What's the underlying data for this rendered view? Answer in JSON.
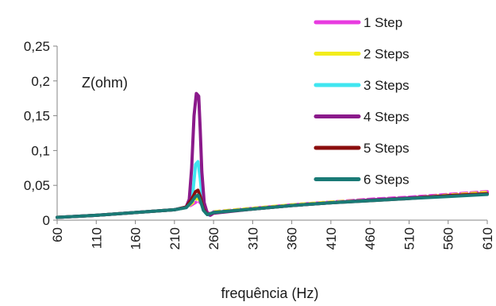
{
  "chart_data": {
    "type": "line",
    "title": "",
    "xlabel": "frequência (Hz)",
    "ylabel": "Z(ohm)",
    "xlim": [
      60,
      610
    ],
    "ylim": [
      0,
      0.25
    ],
    "x_tick_labels": [
      "60",
      "110",
      "160",
      "210",
      "260",
      "310",
      "360",
      "410",
      "460",
      "510",
      "560",
      "610"
    ],
    "y_tick_labels": [
      "0",
      "0,05",
      "0,1",
      "0,15",
      "0,2",
      "0,25"
    ],
    "y_tick_values": [
      0,
      0.05,
      0.1,
      0.15,
      0.2,
      0.25
    ],
    "x_tick_values": [
      60,
      110,
      160,
      210,
      260,
      310,
      360,
      410,
      460,
      510,
      560,
      610
    ],
    "grid": false,
    "legend_position": "right",
    "series": [
      {
        "name": "1 Step",
        "color": "#e83be0",
        "points": [
          [
            60,
            0.004
          ],
          [
            110,
            0.007
          ],
          [
            160,
            0.011
          ],
          [
            210,
            0.015
          ],
          [
            225,
            0.018
          ],
          [
            232,
            0.022
          ],
          [
            238,
            0.026
          ],
          [
            241,
            0.027
          ],
          [
            244,
            0.024
          ],
          [
            248,
            0.015
          ],
          [
            255,
            0.009
          ],
          [
            260,
            0.012
          ],
          [
            310,
            0.017
          ],
          [
            360,
            0.022
          ],
          [
            410,
            0.026
          ],
          [
            460,
            0.03
          ],
          [
            510,
            0.033
          ],
          [
            560,
            0.037
          ],
          [
            610,
            0.041
          ]
        ]
      },
      {
        "name": "2 Steps",
        "color": "#f2ec1c",
        "points": [
          [
            60,
            0.004
          ],
          [
            110,
            0.007
          ],
          [
            160,
            0.011
          ],
          [
            210,
            0.015
          ],
          [
            225,
            0.018
          ],
          [
            232,
            0.024
          ],
          [
            238,
            0.03
          ],
          [
            241,
            0.031
          ],
          [
            244,
            0.026
          ],
          [
            248,
            0.014
          ],
          [
            255,
            0.008
          ],
          [
            260,
            0.012
          ],
          [
            310,
            0.017
          ],
          [
            360,
            0.022
          ],
          [
            410,
            0.026
          ],
          [
            460,
            0.029
          ],
          [
            510,
            0.032
          ],
          [
            560,
            0.036
          ],
          [
            610,
            0.04
          ]
        ]
      },
      {
        "name": "3 Steps",
        "color": "#3fe6f0",
        "points": [
          [
            60,
            0.004
          ],
          [
            110,
            0.007
          ],
          [
            160,
            0.011
          ],
          [
            210,
            0.015
          ],
          [
            225,
            0.018
          ],
          [
            230,
            0.024
          ],
          [
            234,
            0.045
          ],
          [
            237,
            0.08
          ],
          [
            240,
            0.084
          ],
          [
            243,
            0.06
          ],
          [
            246,
            0.025
          ],
          [
            250,
            0.01
          ],
          [
            255,
            0.007
          ],
          [
            260,
            0.011
          ],
          [
            310,
            0.016
          ],
          [
            360,
            0.021
          ],
          [
            410,
            0.025
          ],
          [
            460,
            0.029
          ],
          [
            510,
            0.032
          ],
          [
            560,
            0.035
          ],
          [
            610,
            0.038
          ]
        ]
      },
      {
        "name": "4 Steps",
        "color": "#8b1a8b",
        "points": [
          [
            60,
            0.004
          ],
          [
            110,
            0.007
          ],
          [
            160,
            0.011
          ],
          [
            210,
            0.015
          ],
          [
            225,
            0.019
          ],
          [
            229,
            0.03
          ],
          [
            232,
            0.075
          ],
          [
            235,
            0.15
          ],
          [
            238,
            0.182
          ],
          [
            241,
            0.178
          ],
          [
            243,
            0.13
          ],
          [
            245,
            0.07
          ],
          [
            248,
            0.025
          ],
          [
            252,
            0.01
          ],
          [
            256,
            0.007
          ],
          [
            260,
            0.01
          ],
          [
            310,
            0.016
          ],
          [
            360,
            0.021
          ],
          [
            410,
            0.025
          ],
          [
            460,
            0.029
          ],
          [
            510,
            0.032
          ],
          [
            560,
            0.035
          ],
          [
            610,
            0.038
          ]
        ]
      },
      {
        "name": "5 Steps",
        "color": "#8b0d0d",
        "points": [
          [
            60,
            0.004
          ],
          [
            110,
            0.007
          ],
          [
            160,
            0.011
          ],
          [
            210,
            0.015
          ],
          [
            225,
            0.019
          ],
          [
            232,
            0.03
          ],
          [
            237,
            0.041
          ],
          [
            240,
            0.043
          ],
          [
            243,
            0.034
          ],
          [
            247,
            0.016
          ],
          [
            252,
            0.008
          ],
          [
            260,
            0.011
          ],
          [
            310,
            0.016
          ],
          [
            360,
            0.021
          ],
          [
            410,
            0.025
          ],
          [
            460,
            0.028
          ],
          [
            510,
            0.031
          ],
          [
            560,
            0.035
          ],
          [
            610,
            0.038
          ]
        ]
      },
      {
        "name": "6 Steps",
        "color": "#1a7a76",
        "points": [
          [
            60,
            0.004
          ],
          [
            110,
            0.007
          ],
          [
            160,
            0.011
          ],
          [
            210,
            0.015
          ],
          [
            225,
            0.018
          ],
          [
            232,
            0.026
          ],
          [
            237,
            0.034
          ],
          [
            240,
            0.036
          ],
          [
            243,
            0.029
          ],
          [
            247,
            0.014
          ],
          [
            252,
            0.008
          ],
          [
            260,
            0.011
          ],
          [
            310,
            0.016
          ],
          [
            360,
            0.021
          ],
          [
            410,
            0.025
          ],
          [
            460,
            0.028
          ],
          [
            510,
            0.031
          ],
          [
            560,
            0.034
          ],
          [
            610,
            0.037
          ]
        ]
      }
    ]
  }
}
